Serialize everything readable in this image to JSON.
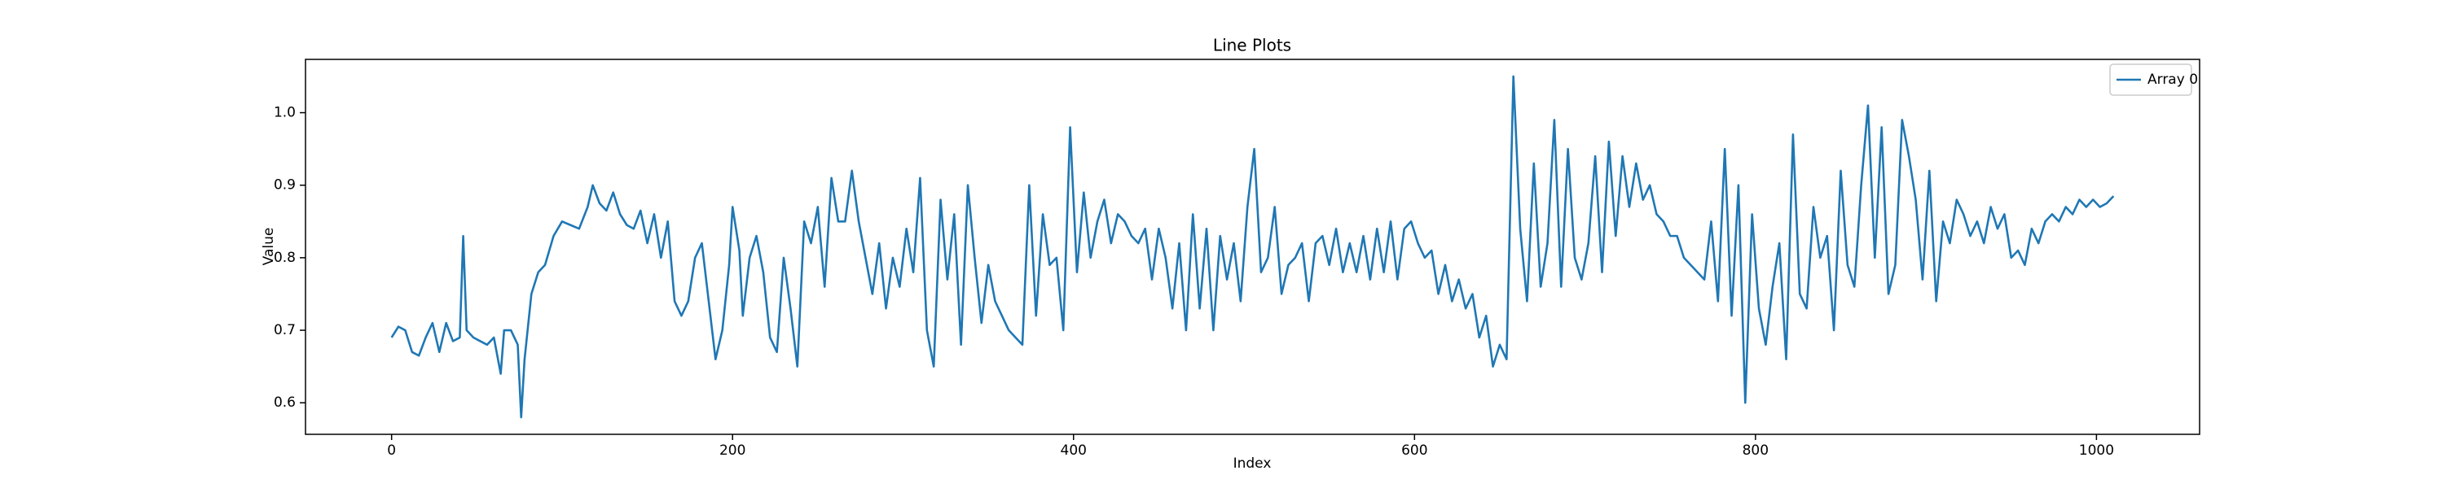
{
  "chart_data": {
    "type": "line",
    "title": "Line Plots",
    "xlabel": "Index",
    "ylabel": "Value",
    "xlim": [
      -50.5,
      1060.5
    ],
    "ylim": [
      0.5565,
      1.0735
    ],
    "xticks": [
      0,
      200,
      400,
      600,
      800,
      1000
    ],
    "yticks": [
      0.6,
      0.7,
      0.8,
      0.9,
      {
        "value": 1,
        "label": "1.0"
      }
    ],
    "grid": false,
    "legend": "upper right",
    "x": [
      0,
      4,
      8,
      12,
      16,
      20,
      24,
      28,
      32,
      36,
      40,
      42,
      44,
      48,
      52,
      56,
      60,
      64,
      66,
      70,
      74,
      76,
      78,
      82,
      86,
      90,
      95,
      100,
      105,
      110,
      115,
      118,
      122,
      126,
      130,
      134,
      138,
      142,
      146,
      150,
      154,
      158,
      162,
      166,
      170,
      174,
      178,
      182,
      186,
      190,
      194,
      198,
      200,
      204,
      206,
      210,
      214,
      218,
      222,
      226,
      230,
      234,
      238,
      242,
      246,
      250,
      254,
      258,
      262,
      266,
      270,
      274,
      278,
      282,
      286,
      290,
      294,
      298,
      302,
      306,
      310,
      314,
      318,
      322,
      326,
      330,
      334,
      338,
      342,
      346,
      350,
      354,
      358,
      362,
      366,
      370,
      374,
      378,
      382,
      386,
      390,
      394,
      398,
      402,
      406,
      410,
      414,
      418,
      422,
      426,
      430,
      434,
      438,
      442,
      446,
      450,
      454,
      458,
      462,
      466,
      470,
      474,
      478,
      482,
      486,
      490,
      494,
      498,
      502,
      506,
      510,
      514,
      518,
      522,
      526,
      530,
      534,
      538,
      542,
      546,
      550,
      554,
      558,
      562,
      566,
      570,
      574,
      578,
      582,
      586,
      590,
      594,
      598,
      602,
      606,
      610,
      614,
      618,
      622,
      626,
      630,
      634,
      638,
      642,
      646,
      650,
      654,
      658,
      662,
      666,
      670,
      674,
      678,
      682,
      686,
      690,
      694,
      698,
      702,
      706,
      710,
      714,
      718,
      722,
      726,
      730,
      734,
      738,
      742,
      746,
      750,
      754,
      758,
      762,
      766,
      770,
      774,
      778,
      782,
      786,
      790,
      794,
      798,
      802,
      806,
      810,
      814,
      818,
      822,
      826,
      830,
      834,
      838,
      842,
      846,
      850,
      854,
      858,
      862,
      866,
      870,
      874,
      878,
      882,
      886,
      890,
      894,
      898,
      902,
      906,
      910,
      914,
      918,
      922,
      926,
      930,
      934,
      938,
      942,
      946,
      950,
      954,
      958,
      962,
      966,
      970,
      974,
      978,
      982,
      986,
      990,
      994,
      998,
      1002,
      1006,
      1010
    ],
    "series": [
      {
        "name": "Array 0",
        "color": "#1f77b4",
        "values": [
          0.69,
          0.705,
          0.7,
          0.67,
          0.665,
          0.69,
          0.71,
          0.67,
          0.71,
          0.685,
          0.69,
          0.83,
          0.7,
          0.69,
          0.685,
          0.68,
          0.69,
          0.64,
          0.7,
          0.7,
          0.68,
          0.58,
          0.66,
          0.75,
          0.78,
          0.79,
          0.83,
          0.85,
          0.845,
          0.84,
          0.87,
          0.9,
          0.875,
          0.865,
          0.89,
          0.86,
          0.845,
          0.84,
          0.865,
          0.82,
          0.86,
          0.8,
          0.85,
          0.74,
          0.72,
          0.74,
          0.8,
          0.82,
          0.74,
          0.66,
          0.7,
          0.79,
          0.87,
          0.81,
          0.72,
          0.8,
          0.83,
          0.78,
          0.69,
          0.67,
          0.8,
          0.73,
          0.65,
          0.85,
          0.82,
          0.87,
          0.76,
          0.91,
          0.85,
          0.85,
          0.92,
          0.85,
          0.8,
          0.75,
          0.82,
          0.73,
          0.8,
          0.76,
          0.84,
          0.78,
          0.91,
          0.7,
          0.65,
          0.88,
          0.77,
          0.86,
          0.68,
          0.9,
          0.8,
          0.71,
          0.79,
          0.74,
          0.72,
          0.7,
          0.69,
          0.68,
          0.9,
          0.72,
          0.86,
          0.79,
          0.8,
          0.7,
          0.98,
          0.78,
          0.89,
          0.8,
          0.85,
          0.88,
          0.82,
          0.86,
          0.85,
          0.83,
          0.82,
          0.84,
          0.77,
          0.84,
          0.8,
          0.73,
          0.82,
          0.7,
          0.86,
          0.73,
          0.84,
          0.7,
          0.83,
          0.77,
          0.82,
          0.74,
          0.87,
          0.95,
          0.78,
          0.8,
          0.87,
          0.75,
          0.79,
          0.8,
          0.82,
          0.74,
          0.82,
          0.83,
          0.79,
          0.84,
          0.78,
          0.82,
          0.78,
          0.83,
          0.77,
          0.84,
          0.78,
          0.85,
          0.77,
          0.84,
          0.85,
          0.82,
          0.8,
          0.81,
          0.75,
          0.79,
          0.74,
          0.77,
          0.73,
          0.75,
          0.69,
          0.72,
          0.65,
          0.68,
          0.66,
          1.05,
          0.84,
          0.74,
          0.93,
          0.76,
          0.82,
          0.99,
          0.76,
          0.95,
          0.8,
          0.77,
          0.82,
          0.94,
          0.78,
          0.96,
          0.83,
          0.94,
          0.87,
          0.93,
          0.88,
          0.9,
          0.86,
          0.85,
          0.83,
          0.83,
          0.8,
          0.79,
          0.78,
          0.77,
          0.85,
          0.74,
          0.95,
          0.72,
          0.9,
          0.6,
          0.86,
          0.73,
          0.68,
          0.76,
          0.82,
          0.66,
          0.97,
          0.75,
          0.73,
          0.87,
          0.8,
          0.83,
          0.7,
          0.92,
          0.79,
          0.76,
          0.9,
          1.01,
          0.8,
          0.98,
          0.75,
          0.79,
          0.99,
          0.94,
          0.88,
          0.77,
          0.92,
          0.74,
          0.85,
          0.82,
          0.88,
          0.86,
          0.83,
          0.85,
          0.82,
          0.87,
          0.84,
          0.86,
          0.8,
          0.81,
          0.79,
          0.84,
          0.82,
          0.85,
          0.86,
          0.85,
          0.87,
          0.86,
          0.88,
          0.87,
          0.88,
          0.87,
          0.875,
          0.885
        ]
      }
    ]
  }
}
